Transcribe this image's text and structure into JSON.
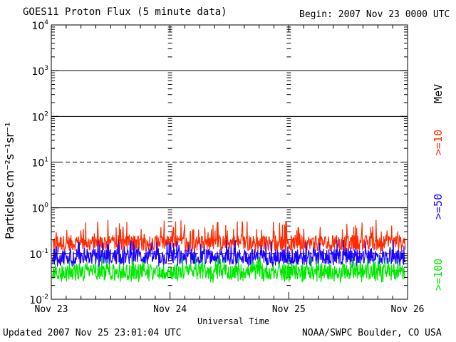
{
  "header": {
    "title": "GOES11 Proton Flux (5 minute data)",
    "begin": "Begin: 2007 Nov 23 0000 UTC"
  },
  "footer": {
    "updated": "Updated 2007 Nov 25 23:01:04 UTC",
    "credit": "NOAA/SWPC Boulder, CO USA"
  },
  "colors": {
    "ge10": "#ff2a00",
    "ge50": "#1a00ff",
    "ge100": "#00e800"
  },
  "chart_data": {
    "type": "line",
    "title": "GOES11 Proton Flux (5 minute data)",
    "xlabel": "Universal Time",
    "ylabel": "Particles cm⁻²s⁻¹sr⁻¹",
    "yscale": "log",
    "ylim": [
      0.01,
      10000
    ],
    "xlim_days": [
      0,
      3
    ],
    "x_tick_labels": [
      "Nov 23",
      "Nov 24",
      "Nov 25",
      "Nov 26"
    ],
    "y_tick_labels": [
      {
        "base": "10",
        "exp": "4"
      },
      {
        "base": "10",
        "exp": "3"
      },
      {
        "base": "10",
        "exp": "2"
      },
      {
        "base": "10",
        "exp": "1"
      },
      {
        "base": "10",
        "exp": "0"
      },
      {
        "base": "10",
        "exp": "-1"
      },
      {
        "base": "10",
        "exp": "-2"
      }
    ],
    "reference_lines": [
      {
        "value": 10,
        "style": "dashed"
      },
      {
        "value": 0.1,
        "style": "dashed"
      }
    ],
    "grid": true,
    "legend_unit": "MeV",
    "series": [
      {
        "name": ">=10",
        "color": "#ff2a00",
        "typical": 0.17,
        "low": 0.1,
        "high": 0.55
      },
      {
        "name": ">=50",
        "color": "#1a00ff",
        "typical": 0.085,
        "low": 0.05,
        "high": 0.2
      },
      {
        "name": ">=100",
        "color": "#00e800",
        "typical": 0.04,
        "low": 0.023,
        "high": 0.085
      }
    ]
  }
}
